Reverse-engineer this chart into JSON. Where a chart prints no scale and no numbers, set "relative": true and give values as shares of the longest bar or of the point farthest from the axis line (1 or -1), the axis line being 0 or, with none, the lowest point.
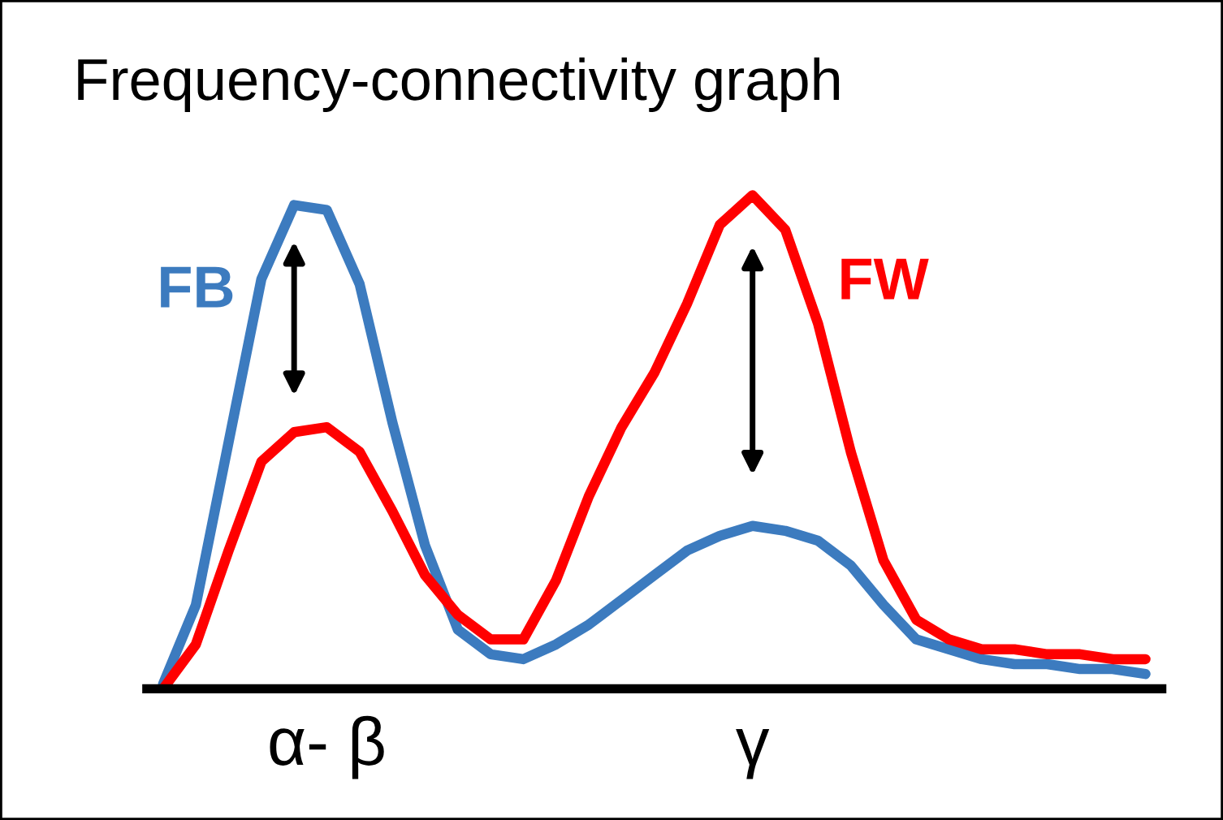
{
  "chart_data": {
    "type": "line",
    "title": "Frequency-connectivity graph",
    "relative": true,
    "categories": [
      null,
      null,
      null,
      null,
      null,
      "α- β",
      null,
      null,
      null,
      null,
      null,
      null,
      null,
      null,
      null,
      null,
      null,
      null,
      "γ",
      null,
      null,
      null,
      null,
      null,
      null,
      null,
      null,
      null,
      null,
      null,
      null
    ],
    "tick_labels": "x",
    "grid": false,
    "legend": false,
    "marker": "none",
    "line_style": "solid",
    "series": [
      {
        "name": "FB",
        "color": "#3c7bbf",
        "values": [
          0.01,
          0.17,
          0.5,
          0.83,
          0.98,
          0.97,
          0.82,
          0.54,
          0.29,
          0.12,
          0.07,
          0.06,
          0.09,
          0.13,
          0.18,
          0.23,
          0.28,
          0.31,
          0.33,
          0.32,
          0.3,
          0.25,
          0.17,
          0.1,
          0.08,
          0.06,
          0.05,
          0.05,
          0.04,
          0.04,
          0.03
        ]
      },
      {
        "name": "FW",
        "color": "#ff0000",
        "values": [
          0.0,
          0.09,
          0.28,
          0.46,
          0.52,
          0.53,
          0.48,
          0.36,
          0.23,
          0.15,
          0.1,
          0.1,
          0.22,
          0.39,
          0.53,
          0.64,
          0.78,
          0.94,
          1.0,
          0.93,
          0.74,
          0.48,
          0.26,
          0.14,
          0.1,
          0.08,
          0.08,
          0.07,
          0.07,
          0.06,
          0.06
        ]
      }
    ]
  }
}
